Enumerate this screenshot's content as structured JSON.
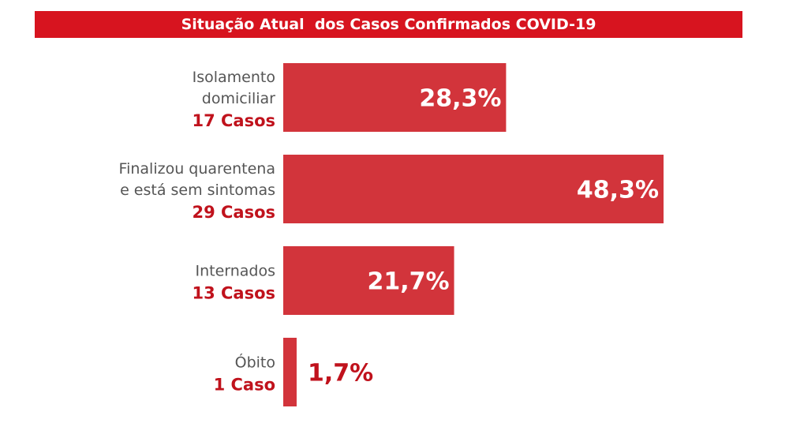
{
  "chart_data": {
    "type": "bar",
    "orientation": "horizontal",
    "title": "Situação Atual  dos Casos Confirmados COVID-19",
    "bar_color": "#d2343b",
    "title_bg_color": "#d7141f",
    "count_color": "#c0121c",
    "xlim": [
      0,
      48.3
    ],
    "grid": false,
    "categories": [
      {
        "lines": [
          "Isolamento",
          "domiciliar"
        ],
        "count": "17 Casos",
        "value": 28.3,
        "value_label": "28,3%"
      },
      {
        "lines": [
          "Finalizou quarentena",
          "e está sem sintomas"
        ],
        "count": "29 Casos",
        "value": 48.3,
        "value_label": "48,3%"
      },
      {
        "lines": [
          "Internados"
        ],
        "count": "13 Casos",
        "value": 21.7,
        "value_label": "21,7%"
      },
      {
        "lines": [
          "Óbito"
        ],
        "count": "1 Caso",
        "value": 1.7,
        "value_label": "1,7%"
      }
    ]
  }
}
